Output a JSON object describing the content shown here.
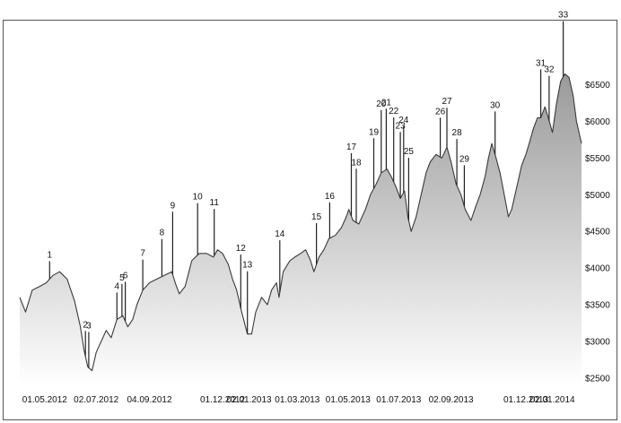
{
  "chart_data": {
    "type": "area",
    "title": "",
    "xlabel": "",
    "ylabel": "",
    "y_axis_position": "right",
    "grid": false,
    "legend": "none",
    "ylim": [
      2400,
      6850
    ],
    "y_ticks": [
      2500,
      3000,
      3500,
      4000,
      4500,
      5000,
      5500,
      6000,
      6500
    ],
    "y_tick_labels": [
      "$2500",
      "$3000",
      "$3500",
      "$4000",
      "$4500",
      "$5000",
      "$5500",
      "$6000",
      "$6500"
    ],
    "x_ticks": [
      "2012-05-01",
      "2012-07-02",
      "2012-09-04",
      "2012-12-01",
      "2013-01-02",
      "2013-03-01",
      "2013-05-01",
      "2013-07-01",
      "2013-09-02",
      "2013-12-01",
      "2014-01-02"
    ],
    "x_tick_labels": [
      "01.05.2012",
      "02.07.2012",
      "04.09.2012",
      "01.12.2012",
      "02.01.2013",
      "01.03.2013",
      "01.05.2013",
      "01.07.2013",
      "02.09.2013",
      "01.12.2013",
      "02.01.2014"
    ],
    "x_range": [
      "2012-04-01",
      "2014-02-06"
    ],
    "series": [
      {
        "values": [
          [
            "2012-04-01",
            3600
          ],
          [
            "2012-04-08",
            3400
          ],
          [
            "2012-04-16",
            3700
          ],
          [
            "2012-04-25",
            3750
          ],
          [
            "2012-05-03",
            3800
          ],
          [
            "2012-05-11",
            3900
          ],
          [
            "2012-05-19",
            3950
          ],
          [
            "2012-05-28",
            3850
          ],
          [
            "2012-06-06",
            3550
          ],
          [
            "2012-06-13",
            3200
          ],
          [
            "2012-06-17",
            2900
          ],
          [
            "2012-06-22",
            2650
          ],
          [
            "2012-06-27",
            2600
          ],
          [
            "2012-07-02",
            2850
          ],
          [
            "2012-07-08",
            3000
          ],
          [
            "2012-07-14",
            3150
          ],
          [
            "2012-07-20",
            3050
          ],
          [
            "2012-07-27",
            3300
          ],
          [
            "2012-08-03",
            3350
          ],
          [
            "2012-08-09",
            3200
          ],
          [
            "2012-08-15",
            3300
          ],
          [
            "2012-08-20",
            3500
          ],
          [
            "2012-08-27",
            3700
          ],
          [
            "2012-09-04",
            3800
          ],
          [
            "2012-09-13",
            3850
          ],
          [
            "2012-09-22",
            3900
          ],
          [
            "2012-10-01",
            3950
          ],
          [
            "2012-10-05",
            3800
          ],
          [
            "2012-10-10",
            3650
          ],
          [
            "2012-10-17",
            3750
          ],
          [
            "2012-10-25",
            4100
          ],
          [
            "2012-11-03",
            4200
          ],
          [
            "2012-11-12",
            4200
          ],
          [
            "2012-11-20",
            4150
          ],
          [
            "2012-11-25",
            4250
          ],
          [
            "2012-12-01",
            4200
          ],
          [
            "2012-12-08",
            4050
          ],
          [
            "2012-12-13",
            3850
          ],
          [
            "2012-12-18",
            3700
          ],
          [
            "2012-12-24",
            3400
          ],
          [
            "2012-12-31",
            3100
          ],
          [
            "2013-01-05",
            3100
          ],
          [
            "2013-01-10",
            3400
          ],
          [
            "2013-01-17",
            3600
          ],
          [
            "2013-01-24",
            3500
          ],
          [
            "2013-01-29",
            3700
          ],
          [
            "2013-02-04",
            3800
          ],
          [
            "2013-02-07",
            3600
          ],
          [
            "2013-02-12",
            3950
          ],
          [
            "2013-02-20",
            4100
          ],
          [
            "2013-02-26",
            4150
          ],
          [
            "2013-03-05",
            4200
          ],
          [
            "2013-03-11",
            4250
          ],
          [
            "2013-03-17",
            4100
          ],
          [
            "2013-03-21",
            3950
          ],
          [
            "2013-03-27",
            4150
          ],
          [
            "2013-04-02",
            4250
          ],
          [
            "2013-04-08",
            4400
          ],
          [
            "2013-04-16",
            4450
          ],
          [
            "2013-04-23",
            4550
          ],
          [
            "2013-04-29",
            4700
          ],
          [
            "2013-05-02",
            4800
          ],
          [
            "2013-05-07",
            4650
          ],
          [
            "2013-05-14",
            4600
          ],
          [
            "2013-05-22",
            4800
          ],
          [
            "2013-05-28",
            5000
          ],
          [
            "2013-06-04",
            5150
          ],
          [
            "2013-06-10",
            5300
          ],
          [
            "2013-06-17",
            5350
          ],
          [
            "2013-06-22",
            5250
          ],
          [
            "2013-06-28",
            5100
          ],
          [
            "2013-07-03",
            4950
          ],
          [
            "2013-07-08",
            5050
          ],
          [
            "2013-07-12",
            4700
          ],
          [
            "2013-07-16",
            4500
          ],
          [
            "2013-07-22",
            4700
          ],
          [
            "2013-07-28",
            5000
          ],
          [
            "2013-08-03",
            5300
          ],
          [
            "2013-08-08",
            5450
          ],
          [
            "2013-08-15",
            5550
          ],
          [
            "2013-08-22",
            5500
          ],
          [
            "2013-08-28",
            5650
          ],
          [
            "2013-09-02",
            5450
          ],
          [
            "2013-09-08",
            5150
          ],
          [
            "2013-09-14",
            5000
          ],
          [
            "2013-09-19",
            4800
          ],
          [
            "2013-09-26",
            4650
          ],
          [
            "2013-10-02",
            4850
          ],
          [
            "2013-10-07",
            5000
          ],
          [
            "2013-10-13",
            5250
          ],
          [
            "2013-10-17",
            5500
          ],
          [
            "2013-10-21",
            5700
          ],
          [
            "2013-10-25",
            5550
          ],
          [
            "2013-10-31",
            5300
          ],
          [
            "2013-11-05",
            5000
          ],
          [
            "2013-11-10",
            4700
          ],
          [
            "2013-11-14",
            4800
          ],
          [
            "2013-11-18",
            5000
          ],
          [
            "2013-11-22",
            5200
          ],
          [
            "2013-11-26",
            5400
          ],
          [
            "2013-12-01",
            5550
          ],
          [
            "2013-12-05",
            5700
          ],
          [
            "2013-12-10",
            5900
          ],
          [
            "2013-12-15",
            6050
          ],
          [
            "2013-12-19",
            6050
          ],
          [
            "2013-12-24",
            6200
          ],
          [
            "2013-12-28",
            6050
          ],
          [
            "2014-01-02",
            5850
          ],
          [
            "2014-01-07",
            6250
          ],
          [
            "2014-01-12",
            6550
          ],
          [
            "2014-01-17",
            6650
          ],
          [
            "2014-01-22",
            6600
          ],
          [
            "2014-01-27",
            6350
          ],
          [
            "2014-01-31",
            6000
          ],
          [
            "2014-02-06",
            5700
          ]
        ]
      }
    ],
    "annotations": [
      {
        "label": "1",
        "date": "2012-05-07"
      },
      {
        "label": "2",
        "date": "2012-06-19"
      },
      {
        "label": "3",
        "date": "2012-06-23"
      },
      {
        "label": "4",
        "date": "2012-07-27"
      },
      {
        "label": "5",
        "date": "2012-08-02"
      },
      {
        "label": "6",
        "date": "2012-08-06"
      },
      {
        "label": "7",
        "date": "2012-08-27"
      },
      {
        "label": "8",
        "date": "2012-09-19"
      },
      {
        "label": "9",
        "date": "2012-10-02"
      },
      {
        "label": "10",
        "date": "2012-11-01"
      },
      {
        "label": "11",
        "date": "2012-11-21"
      },
      {
        "label": "12",
        "date": "2012-12-23"
      },
      {
        "label": "13",
        "date": "2012-12-31"
      },
      {
        "label": "14",
        "date": "2013-02-08"
      },
      {
        "label": "15",
        "date": "2013-03-24"
      },
      {
        "label": "16",
        "date": "2013-04-09"
      },
      {
        "label": "17",
        "date": "2013-05-05"
      },
      {
        "label": "18",
        "date": "2013-05-11"
      },
      {
        "label": "19",
        "date": "2013-06-01"
      },
      {
        "label": "20",
        "date": "2013-06-10"
      },
      {
        "label": "21",
        "date": "2013-06-16"
      },
      {
        "label": "22",
        "date": "2013-06-25"
      },
      {
        "label": "23",
        "date": "2013-07-03"
      },
      {
        "label": "24",
        "date": "2013-07-07"
      },
      {
        "label": "25",
        "date": "2013-07-13"
      },
      {
        "label": "26",
        "date": "2013-08-20"
      },
      {
        "label": "27",
        "date": "2013-08-28"
      },
      {
        "label": "28",
        "date": "2013-09-09"
      },
      {
        "label": "29",
        "date": "2013-09-18"
      },
      {
        "label": "30",
        "date": "2013-10-25"
      },
      {
        "label": "31",
        "date": "2013-12-19"
      },
      {
        "label": "32",
        "date": "2013-12-29"
      },
      {
        "label": "33",
        "date": "2014-01-15"
      }
    ]
  },
  "colors": {
    "line": "#3a3a3a",
    "fill_top": "#9a9a9a",
    "fill_bottom": "#ffffff",
    "annotation_line": "#222222",
    "frame": "#555555",
    "text": "#111111"
  }
}
